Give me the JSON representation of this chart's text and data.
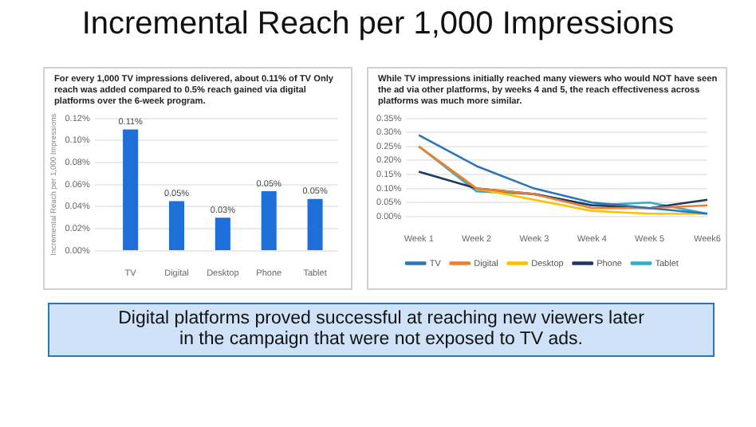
{
  "chart_data": [
    {
      "type": "bar",
      "title": "Incremental Reach per 1,000 Impressions",
      "subtitle": "For every 1,000 TV impressions delivered, about 0.11% of TV Only reach was added compared to 0.5% reach gained via digital platforms over the 6-week program.",
      "ylabel": "Incremental Reach per 1,000 Impressions",
      "categories": [
        "TV",
        "Digital",
        "Desktop",
        "Phone",
        "Tablet"
      ],
      "values": [
        0.11,
        0.045,
        0.03,
        0.054,
        0.047
      ],
      "value_labels": [
        "0.11%",
        "0.05%",
        "0.03%",
        "0.05%",
        "0.05%"
      ],
      "color": "#1f6fd8",
      "ylim": [
        0,
        0.12
      ],
      "yticks": [
        {
          "value": 0,
          "label": "0.00%"
        },
        {
          "value": 0.02,
          "label": "0.02%"
        },
        {
          "value": 0.04,
          "label": "0.04%"
        },
        {
          "value": 0.06,
          "label": "0.06%"
        },
        {
          "value": 0.08,
          "label": "0.08%"
        },
        {
          "value": 0.1,
          "label": "0.10%"
        },
        {
          "value": 0.12,
          "label": "0.12%"
        }
      ],
      "grid": "y"
    },
    {
      "type": "line",
      "subtitle": "While TV impressions initially reached many viewers who would NOT have seen the ad via other platforms, by weeks 4 and 5, the reach effectiveness across platforms was much more similar.",
      "categories": [
        "Week 1",
        "Week 2",
        "Week 3",
        "Week 4",
        "Week 5",
        "Week6"
      ],
      "series": [
        {
          "name": "TV",
          "color": "#2e75b6",
          "values": [
            0.29,
            0.18,
            0.1,
            0.05,
            0.03,
            0.01
          ]
        },
        {
          "name": "Digital",
          "color": "#ed7d31",
          "values": [
            0.25,
            0.1,
            0.08,
            0.03,
            0.03,
            0.04
          ]
        },
        {
          "name": "Desktop",
          "color": "#ffc000",
          "values": [
            0.25,
            0.1,
            0.06,
            0.02,
            0.01,
            0.01
          ]
        },
        {
          "name": "Phone",
          "color": "#1f3864",
          "values": [
            0.16,
            0.1,
            0.08,
            0.04,
            0.03,
            0.06
          ]
        },
        {
          "name": "Tablet",
          "color": "#2eb0c8",
          "values": [
            0.25,
            0.09,
            0.08,
            0.04,
            0.05,
            0.01
          ]
        }
      ],
      "ylim": [
        0,
        0.35
      ],
      "yticks": [
        {
          "value": 0,
          "label": "0.00%"
        },
        {
          "value": 0.05,
          "label": "0.05%"
        },
        {
          "value": 0.1,
          "label": "0.10%"
        },
        {
          "value": 0.15,
          "label": "0.15%"
        },
        {
          "value": 0.2,
          "label": "0.20%"
        },
        {
          "value": 0.25,
          "label": "0.25%"
        },
        {
          "value": 0.3,
          "label": "0.30%"
        },
        {
          "value": 0.35,
          "label": "0.35%"
        }
      ],
      "grid": "y",
      "legend": "bottom"
    },
    {
      "type": "other",
      "annotations": [
        "Digital platforms proved successful at reaching new viewers later in the campaign that were not exposed to TV ads."
      ]
    }
  ]
}
